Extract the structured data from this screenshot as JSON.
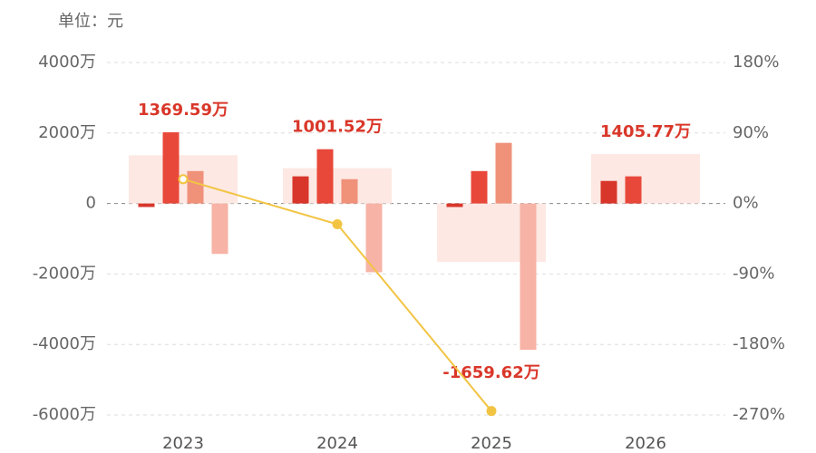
{
  "chart_data": {
    "type": "bar",
    "subtitle": "单位：元",
    "categories": [
      "2023",
      "2024",
      "2025",
      "2026"
    ],
    "series": [
      {
        "color": "#d8362a",
        "values": [
          -100,
          770,
          -100,
          640
        ]
      },
      {
        "color": "#e8483a",
        "values": [
          2020,
          1540,
          920,
          770
        ]
      },
      {
        "color": "#f0917a",
        "values": [
          920,
          690,
          1720,
          null
        ]
      },
      {
        "color": "#f7b3a6",
        "values": [
          -1430,
          -1950,
          -4150,
          null
        ]
      },
      {
        "type": "line",
        "axis": "y2",
        "color": "#f2c443",
        "values": [
          31,
          -26.5,
          -265,
          null
        ]
      }
    ],
    "totals": {
      "color": "#fde8e3",
      "label_color": "#d9372a",
      "values": [
        1369.59,
        1001.52,
        -1659.62,
        1405.77
      ],
      "value_labels": [
        "1369.59万",
        "1001.52万",
        "-1659.62万",
        "1405.77万"
      ]
    },
    "ylim": [
      -6000,
      4000
    ],
    "yticks": [
      {
        "value": 4000,
        "label": "4000万"
      },
      {
        "value": 2000,
        "label": "2000万"
      },
      0,
      {
        "value": -2000,
        "label": "-2000万"
      },
      {
        "value": -4000,
        "label": "-4000万"
      },
      {
        "value": -6000,
        "label": "-6000万"
      }
    ],
    "y2lim": [
      -270,
      180
    ],
    "y2ticks": [
      {
        "value": 180,
        "label": "180%"
      },
      {
        "value": 90,
        "label": "90%"
      },
      {
        "value": 0,
        "label": "0%"
      },
      {
        "value": -90,
        "label": "-90%"
      },
      {
        "value": -180,
        "label": "-180%"
      },
      {
        "value": -270,
        "label": "-270%"
      }
    ],
    "grid": true
  }
}
